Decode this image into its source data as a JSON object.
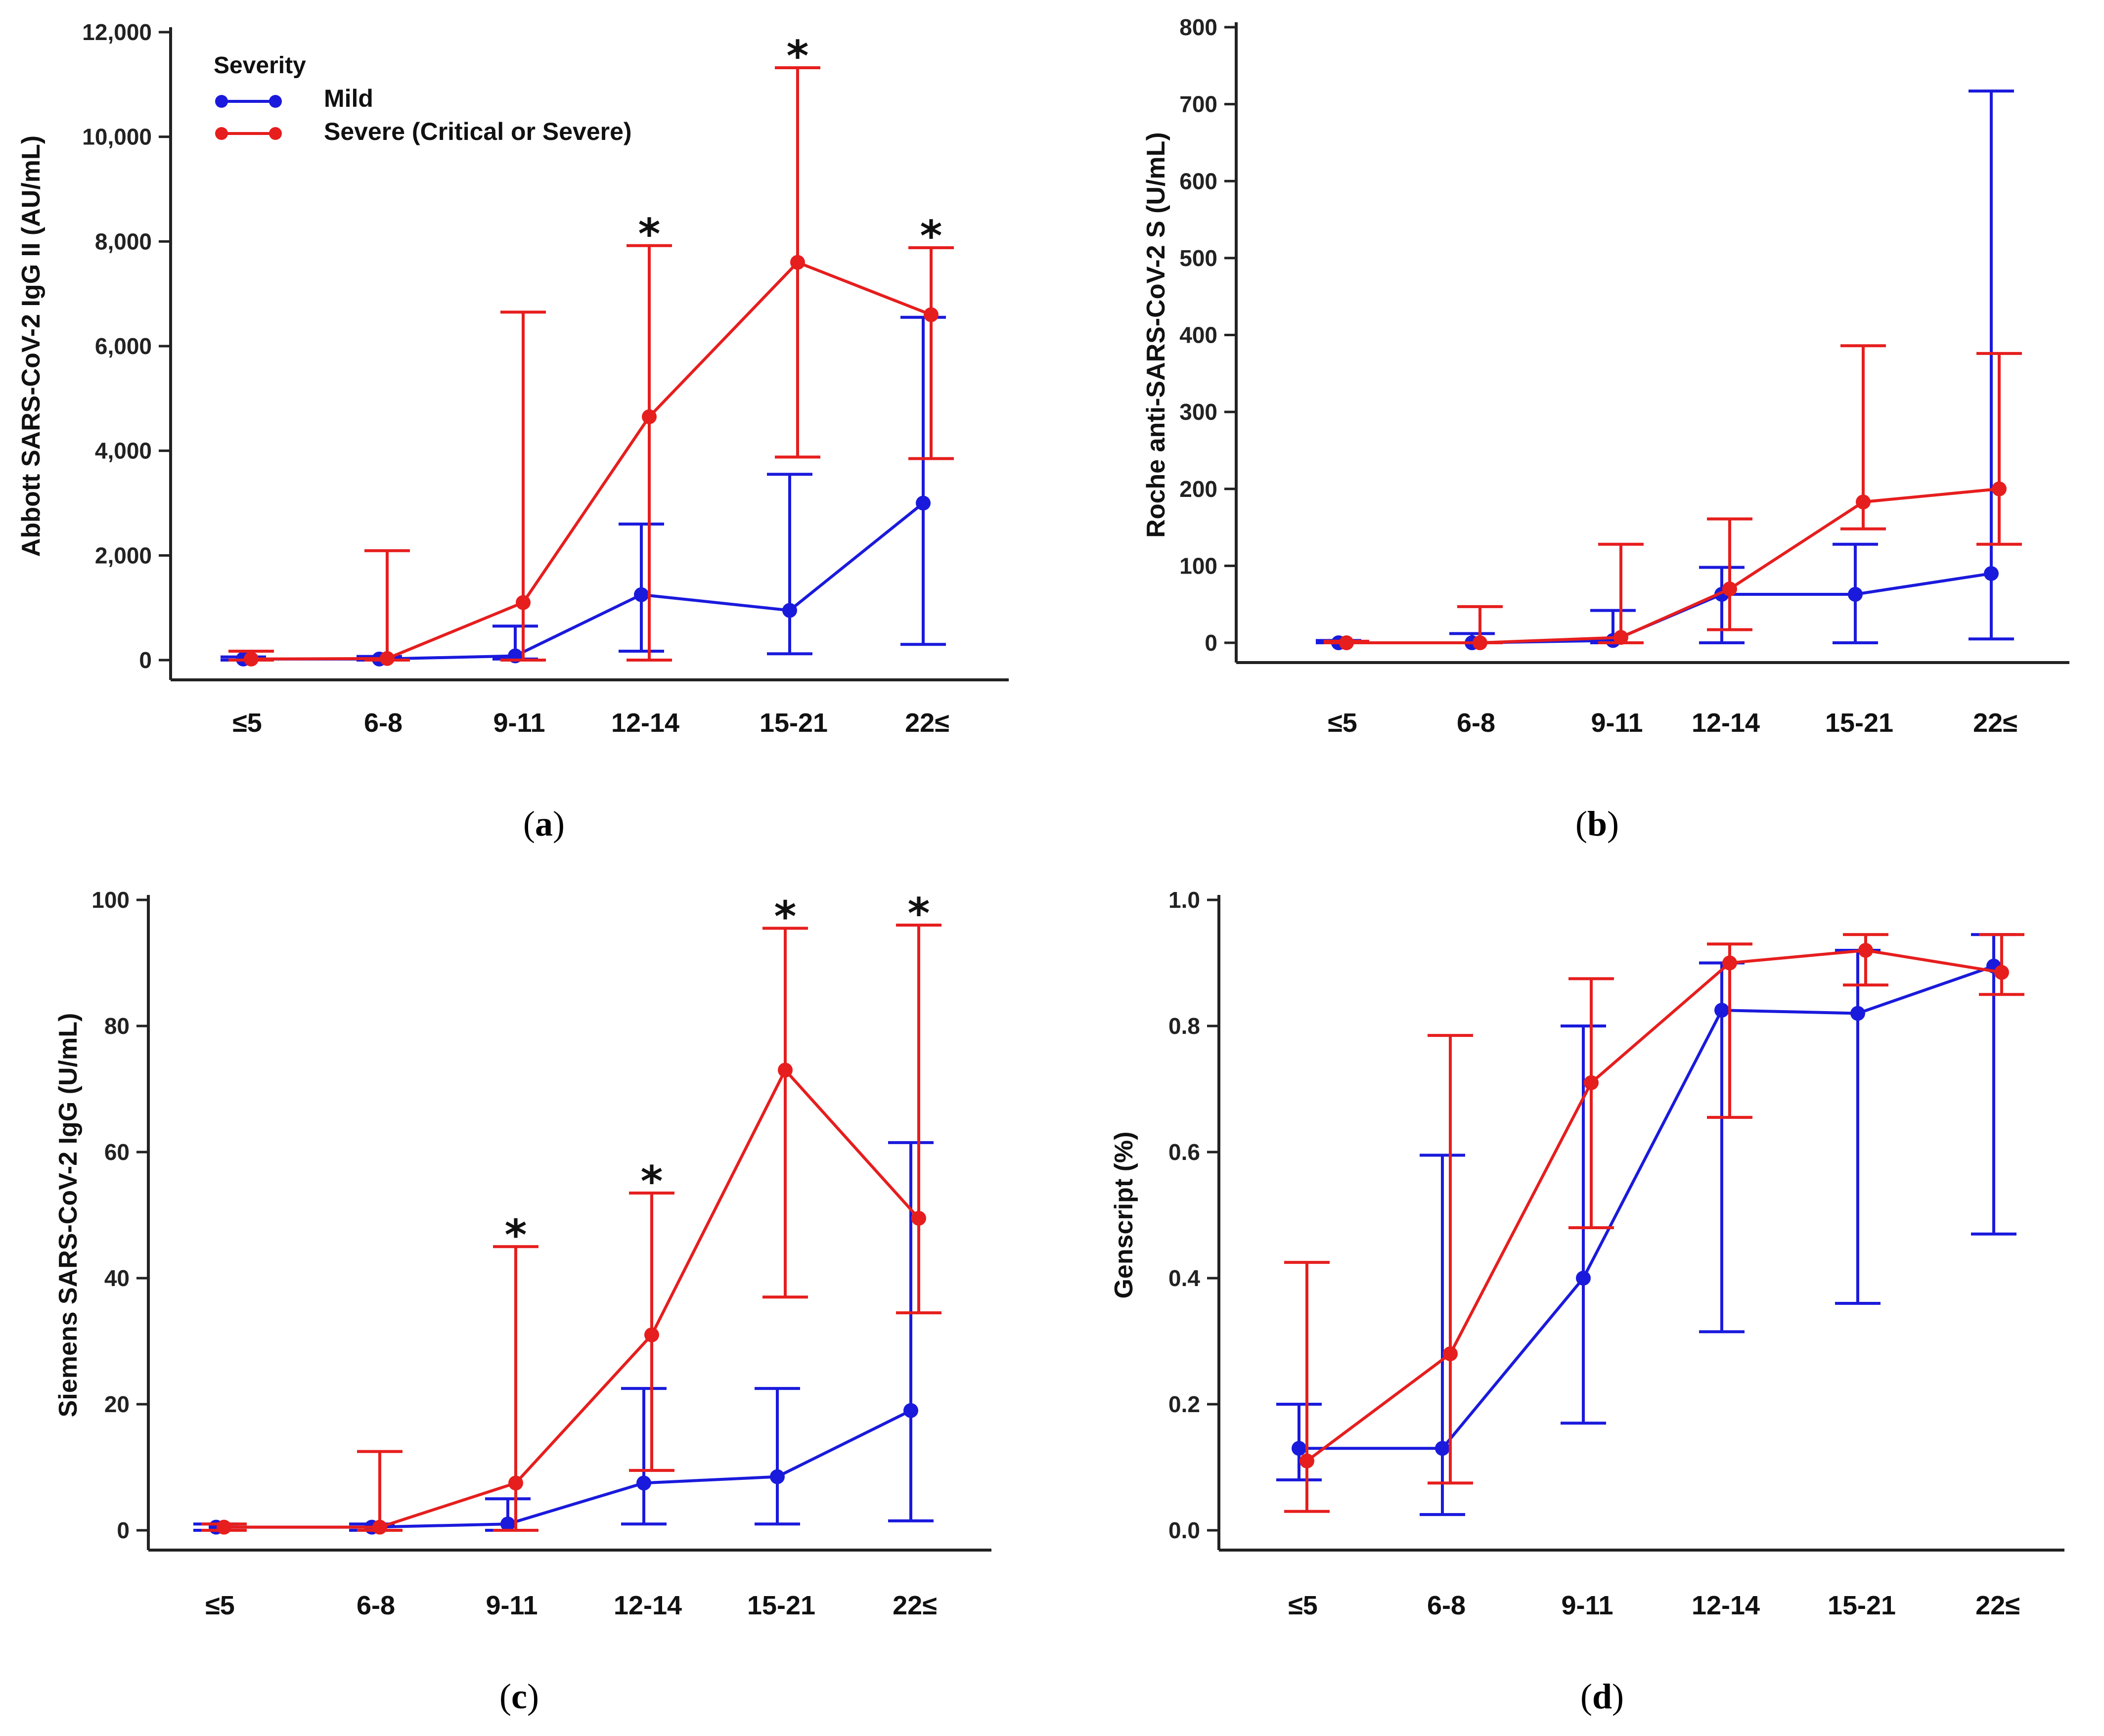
{
  "colors": {
    "mild": "#1a1adc",
    "severe": "#e61e1e",
    "axis": "#222222"
  },
  "legend": {
    "title": "Severity",
    "entries": [
      "Mild",
      "Severe (Critical or Severe)"
    ]
  },
  "chart_data": [
    {
      "type": "line",
      "panel_label": "a",
      "ylabel": "Abbott SARS-CoV-2 IgG II (AU/mL)",
      "categories": [
        "≤5",
        "6-8",
        "9-11",
        "12-14",
        "15-21",
        "22≤"
      ],
      "ylim": [
        0,
        12000
      ],
      "yticks": [
        0,
        2000,
        4000,
        6000,
        8000,
        10000,
        12000
      ],
      "ytick_labels": [
        "0",
        "2,000",
        "4,000",
        "6,000",
        "8,000",
        "10,000",
        "12,000"
      ],
      "grid": false,
      "significant": [
        false,
        false,
        false,
        true,
        true,
        true
      ],
      "series": [
        {
          "name": "Mild",
          "values": [
            20,
            20,
            80,
            1250,
            950,
            3000
          ],
          "lower": [
            0,
            0,
            20,
            170,
            120,
            300
          ],
          "upper": [
            60,
            70,
            650,
            2600,
            3550,
            6550
          ]
        },
        {
          "name": "Severe (Critical or Severe)",
          "values": [
            20,
            30,
            1100,
            4650,
            7600,
            6600
          ],
          "lower": [
            0,
            0,
            0,
            0,
            3880,
            3850
          ],
          "upper": [
            170,
            2090,
            6650,
            7920,
            11320,
            7880
          ]
        }
      ]
    },
    {
      "type": "line",
      "panel_label": "b",
      "ylabel": "Roche anti-SARS-CoV-2 S (U/mL)",
      "categories": [
        "≤5",
        "6-8",
        "9-11",
        "12-14",
        "15-21",
        "22≤"
      ],
      "ylim": [
        0,
        800
      ],
      "yticks": [
        0,
        100,
        200,
        300,
        400,
        500,
        600,
        700,
        800
      ],
      "ytick_labels": [
        "0",
        "100",
        "200",
        "300",
        "400",
        "500",
        "600",
        "700",
        "800"
      ],
      "grid": false,
      "significant": [
        false,
        false,
        false,
        false,
        false,
        false
      ],
      "series": [
        {
          "name": "Mild",
          "values": [
            0,
            0,
            3,
            63,
            63,
            90
          ],
          "lower": [
            0,
            0,
            0,
            0,
            0,
            5
          ],
          "upper": [
            3,
            12,
            42,
            98,
            128,
            717
          ]
        },
        {
          "name": "Severe (Critical or Severe)",
          "values": [
            0,
            0,
            7,
            70,
            183,
            200
          ],
          "lower": [
            0,
            0,
            0,
            17,
            148,
            128
          ],
          "upper": [
            2,
            47,
            128,
            161,
            386,
            376
          ]
        }
      ]
    },
    {
      "type": "line",
      "panel_label": "c",
      "ylabel": "Siemens SARS-CoV-2 IgG (U/mL)",
      "categories": [
        "≤5",
        "6-8",
        "9-11",
        "12-14",
        "15-21",
        "22≤"
      ],
      "ylim": [
        0,
        100
      ],
      "yticks": [
        0,
        20,
        40,
        60,
        80,
        100
      ],
      "ytick_labels": [
        "0",
        "20",
        "40",
        "60",
        "80",
        "100"
      ],
      "grid": false,
      "significant": [
        false,
        false,
        true,
        true,
        true,
        true
      ],
      "series": [
        {
          "name": "Mild",
          "values": [
            0.5,
            0.5,
            1,
            7.5,
            8.5,
            19
          ],
          "lower": [
            0,
            0,
            0,
            1,
            1,
            1.5
          ],
          "upper": [
            1,
            1,
            5,
            22.5,
            22.5,
            61.5
          ]
        },
        {
          "name": "Severe (Critical or Severe)",
          "values": [
            0.5,
            0.5,
            7.5,
            31,
            73,
            49.5
          ],
          "lower": [
            0,
            0,
            0,
            9.5,
            37,
            34.5
          ],
          "upper": [
            1,
            12.5,
            45,
            53.5,
            95.5,
            96
          ]
        }
      ]
    },
    {
      "type": "line",
      "panel_label": "d",
      "ylabel": "Genscript (%)",
      "categories": [
        "≤5",
        "6-8",
        "9-11",
        "12-14",
        "15-21",
        "22≤"
      ],
      "ylim": [
        0,
        1.0
      ],
      "yticks": [
        0,
        0.2,
        0.4,
        0.6,
        0.8,
        1.0
      ],
      "ytick_labels": [
        "0.0",
        "0.2",
        "0.4",
        "0.6",
        "0.8",
        "1.0"
      ],
      "grid": false,
      "significant": [
        false,
        false,
        false,
        false,
        false,
        false
      ],
      "series": [
        {
          "name": "Mild",
          "values": [
            0.13,
            0.13,
            0.4,
            0.825,
            0.82,
            0.895
          ],
          "lower": [
            0.08,
            0.025,
            0.17,
            0.315,
            0.36,
            0.47
          ],
          "upper": [
            0.2,
            0.595,
            0.8,
            0.9,
            0.92,
            0.945
          ]
        },
        {
          "name": "Severe (Critical or Severe)",
          "values": [
            0.11,
            0.28,
            0.71,
            0.9,
            0.92,
            0.885
          ],
          "lower": [
            0.03,
            0.075,
            0.48,
            0.655,
            0.865,
            0.85
          ],
          "upper": [
            0.425,
            0.785,
            0.875,
            0.93,
            0.945,
            0.945
          ]
        }
      ]
    }
  ]
}
